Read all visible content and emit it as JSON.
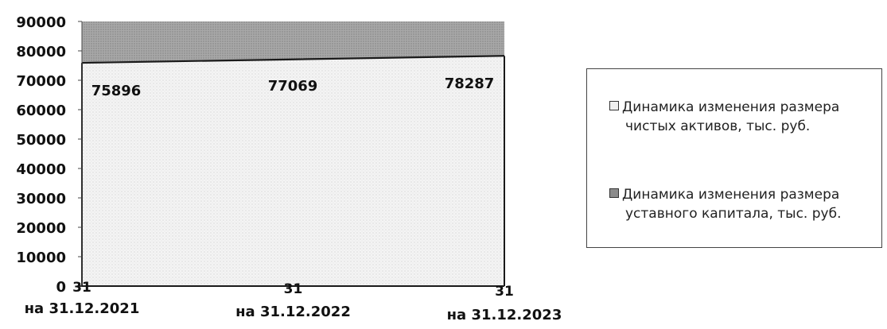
{
  "chart_data": {
    "type": "area",
    "categories": [
      "на 31.12.2021",
      "на 31.12.2022",
      "на 31.12.2023"
    ],
    "y_ticks": [
      0,
      10000,
      20000,
      30000,
      40000,
      50000,
      60000,
      70000,
      80000,
      90000
    ],
    "ylim": [
      0,
      90000
    ],
    "grid": false,
    "legend_position": "right",
    "series": [
      {
        "name": "Динамика изменения размера чистых активов, тыс. руб.",
        "values": [
          75896,
          77069,
          78287
        ],
        "data_labels": [
          "75896",
          "77069",
          "78287"
        ],
        "color": "#d9d9d9"
      },
      {
        "name": "Динамика изменения размера уставного капитала, тыс. руб.",
        "values": [
          31,
          31,
          31
        ],
        "data_labels": [
          "31",
          "31",
          "31"
        ],
        "color": "#8c8c8c"
      }
    ],
    "legend": {
      "items": [
        {
          "line1": "Динамика изменения размера",
          "line2": "чистых активов, тыс. руб."
        },
        {
          "line1": "Динамика изменения размера",
          "line2": "уставного капитала, тыс. руб."
        }
      ]
    }
  }
}
